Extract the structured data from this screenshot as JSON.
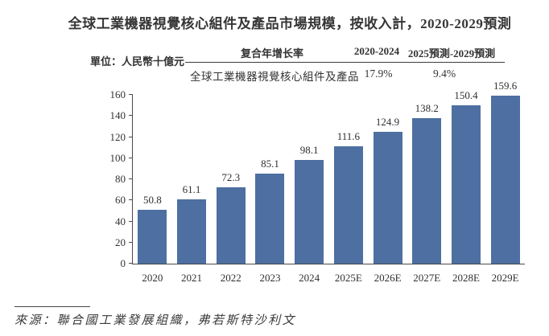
{
  "page": {
    "title": "全球工業機器視覺核心組件及產品市場規模，按收入計，2020-2029預測",
    "unit_label": "單位：人民幣十億元",
    "source": "來源：聯合國工業發展組織，弗若斯特沙利文"
  },
  "cagr_table": {
    "metric_header": "复合年增长率",
    "period_headers": [
      "2020-2024",
      "2025預測-2029預測"
    ],
    "row_label": "全球工業機器視覺核心組件及產品",
    "row_values": [
      "17.9%",
      "9.4%"
    ]
  },
  "colors": {
    "bar": "#4d6fa1",
    "axis": "#4a4a4a",
    "text": "#333333"
  },
  "chart_data": {
    "type": "bar",
    "title": "全球工業機器視覺核心組件及產品市場規模，按收入計，2020-2029預測",
    "categories": [
      "2020",
      "2021",
      "2022",
      "2023",
      "2024",
      "2025E",
      "2026E",
      "2027E",
      "2028E",
      "2029E"
    ],
    "values": [
      50.8,
      61.1,
      72.3,
      85.1,
      98.1,
      111.6,
      124.9,
      138.2,
      150.4,
      159.6
    ],
    "ylabel": "人民幣十億元",
    "ylim": [
      0,
      160
    ],
    "ytick_step": 20,
    "grid": false,
    "legend": "none",
    "value_labels": true,
    "cagr_2020_2024": "17.9%",
    "cagr_2025E_2029E": "9.4%"
  }
}
